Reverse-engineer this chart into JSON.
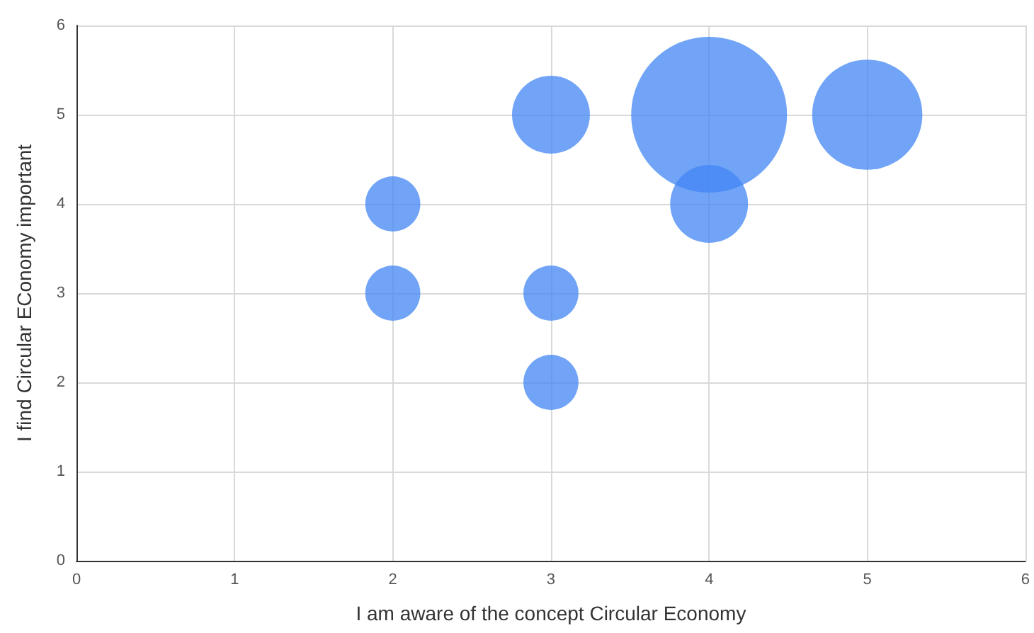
{
  "chart_data": {
    "type": "bubble",
    "xlabel": "I am aware of the concept Circular Economy",
    "ylabel": "I find Circular EConomy important",
    "series": [
      {
        "color": "#4285f4",
        "x": [
          2,
          2,
          3,
          3,
          3,
          4,
          4,
          5
        ],
        "values": [
          4,
          3,
          5,
          3,
          2,
          5,
          4,
          5
        ],
        "sizes": [
          0.125,
          0.125,
          0.25,
          0.125,
          0.125,
          1,
          0.25,
          0.5
        ]
      }
    ],
    "xlim": [
      0,
      6
    ],
    "xticks": [
      0,
      1,
      2,
      3,
      4,
      5,
      6
    ],
    "ylim": [
      0,
      6
    ],
    "yticks": [
      0,
      1,
      2,
      3,
      4,
      5,
      6
    ],
    "grid": true,
    "marker": "circle"
  }
}
